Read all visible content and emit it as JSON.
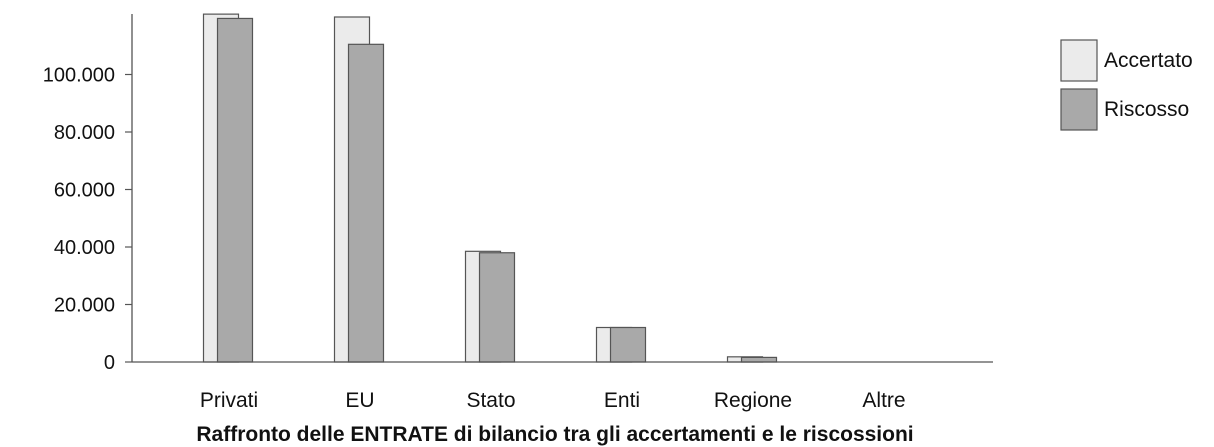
{
  "chart_data": {
    "type": "bar",
    "title": "Raffronto delle ENTRATE di bilancio tra gli accertamenti e le riscossioni",
    "xlabel": "",
    "ylabel": "",
    "categories": [
      "Privati",
      "EU",
      "Stato",
      "Enti",
      "Regione",
      "Altre"
    ],
    "series": [
      {
        "name": "Accertato",
        "color": "#ebebeb",
        "values": [
          121000,
          120000,
          38500,
          12000,
          1800,
          0
        ]
      },
      {
        "name": "Riscosso",
        "color": "#a9a9a9",
        "values": [
          119500,
          110500,
          38000,
          12000,
          1600,
          0
        ]
      }
    ],
    "yticks": [
      0,
      20000,
      40000,
      60000,
      80000,
      100000
    ],
    "ytick_labels": [
      "0",
      "20.000",
      "40.000",
      "60.000",
      "80.000",
      "100.000"
    ],
    "ylim": [
      0,
      121000
    ],
    "grid": false,
    "legend_position": "top-right"
  }
}
